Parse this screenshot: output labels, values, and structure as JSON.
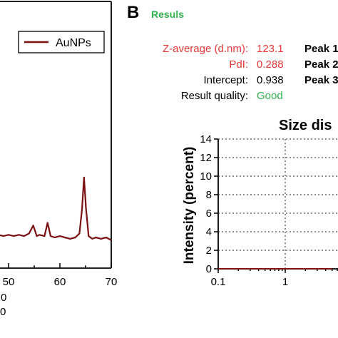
{
  "panel_b": {
    "letter": "B",
    "title": "Resuls",
    "title_color": "#2db34a",
    "results": [
      {
        "label": "Z-average (d.nm):",
        "value": "123.1",
        "label_color": "#e53935",
        "value_color": "#e53935"
      },
      {
        "label": "PdI:",
        "value": "0.288",
        "label_color": "#e53935",
        "value_color": "#e53935"
      },
      {
        "label": "Intercept:",
        "value": "0.938",
        "label_color": "#000000",
        "value_color": "#000000"
      },
      {
        "label": "Result quality:",
        "value": "Good",
        "label_color": "#000000",
        "value_color": "#2db34a"
      }
    ],
    "peaks": [
      "Peak 1",
      "Peak 2",
      "Peak 3"
    ]
  },
  "chart_data": [
    {
      "type": "line",
      "xlabel": "",
      "ylabel": "",
      "xlim": [
        41,
        70
      ],
      "ylim": [
        0,
        100
      ],
      "x_ticks": [
        50,
        60,
        70
      ],
      "x_tick_labels": [
        "50",
        "60",
        "70"
      ],
      "partial_tick_labels": [
        "0",
        "0"
      ],
      "legend": {
        "entries": [
          "AuNPs"
        ],
        "position": "top-right"
      },
      "series": [
        {
          "name": "AuNPs",
          "color": "#7a1010",
          "x": [
            41,
            43,
            45,
            46,
            47,
            48,
            49,
            50,
            51,
            52,
            53,
            54,
            54.8,
            55.5,
            56,
            57,
            57.6,
            58.2,
            59,
            60,
            61,
            62,
            63,
            63.8,
            64.3,
            64.7,
            65.1,
            65.6,
            66.3,
            67,
            68,
            69,
            70
          ],
          "y": [
            14,
            13,
            12.5,
            13,
            12,
            12.5,
            12,
            12.5,
            12,
            12.5,
            12,
            13,
            16,
            12,
            12.5,
            12,
            17,
            12,
            11.5,
            12,
            11.5,
            11,
            11.5,
            13,
            22,
            34,
            22,
            12,
            11,
            11.5,
            11,
            11.5,
            10.5
          ]
        }
      ]
    },
    {
      "type": "line",
      "title": "Size dis",
      "xlabel": "",
      "ylabel": "Intensity (percent)",
      "xscale": "log",
      "xlim": [
        0.1,
        10
      ],
      "ylim": [
        0,
        14
      ],
      "y_ticks": [
        0,
        2,
        4,
        6,
        8,
        10,
        12,
        14
      ],
      "y_tick_labels": [
        "0",
        "2",
        "4",
        "6",
        "8",
        "10",
        "12",
        "14"
      ],
      "x_ticks": [
        0.1,
        1
      ],
      "x_tick_labels": [
        "0.1",
        "1"
      ],
      "grid": true,
      "series": [
        {
          "color": "#7a1010",
          "x": [
            0.1,
            0.2,
            0.5,
            1,
            2,
            5
          ],
          "y": [
            0,
            0,
            0,
            0,
            0,
            0
          ]
        }
      ]
    }
  ]
}
